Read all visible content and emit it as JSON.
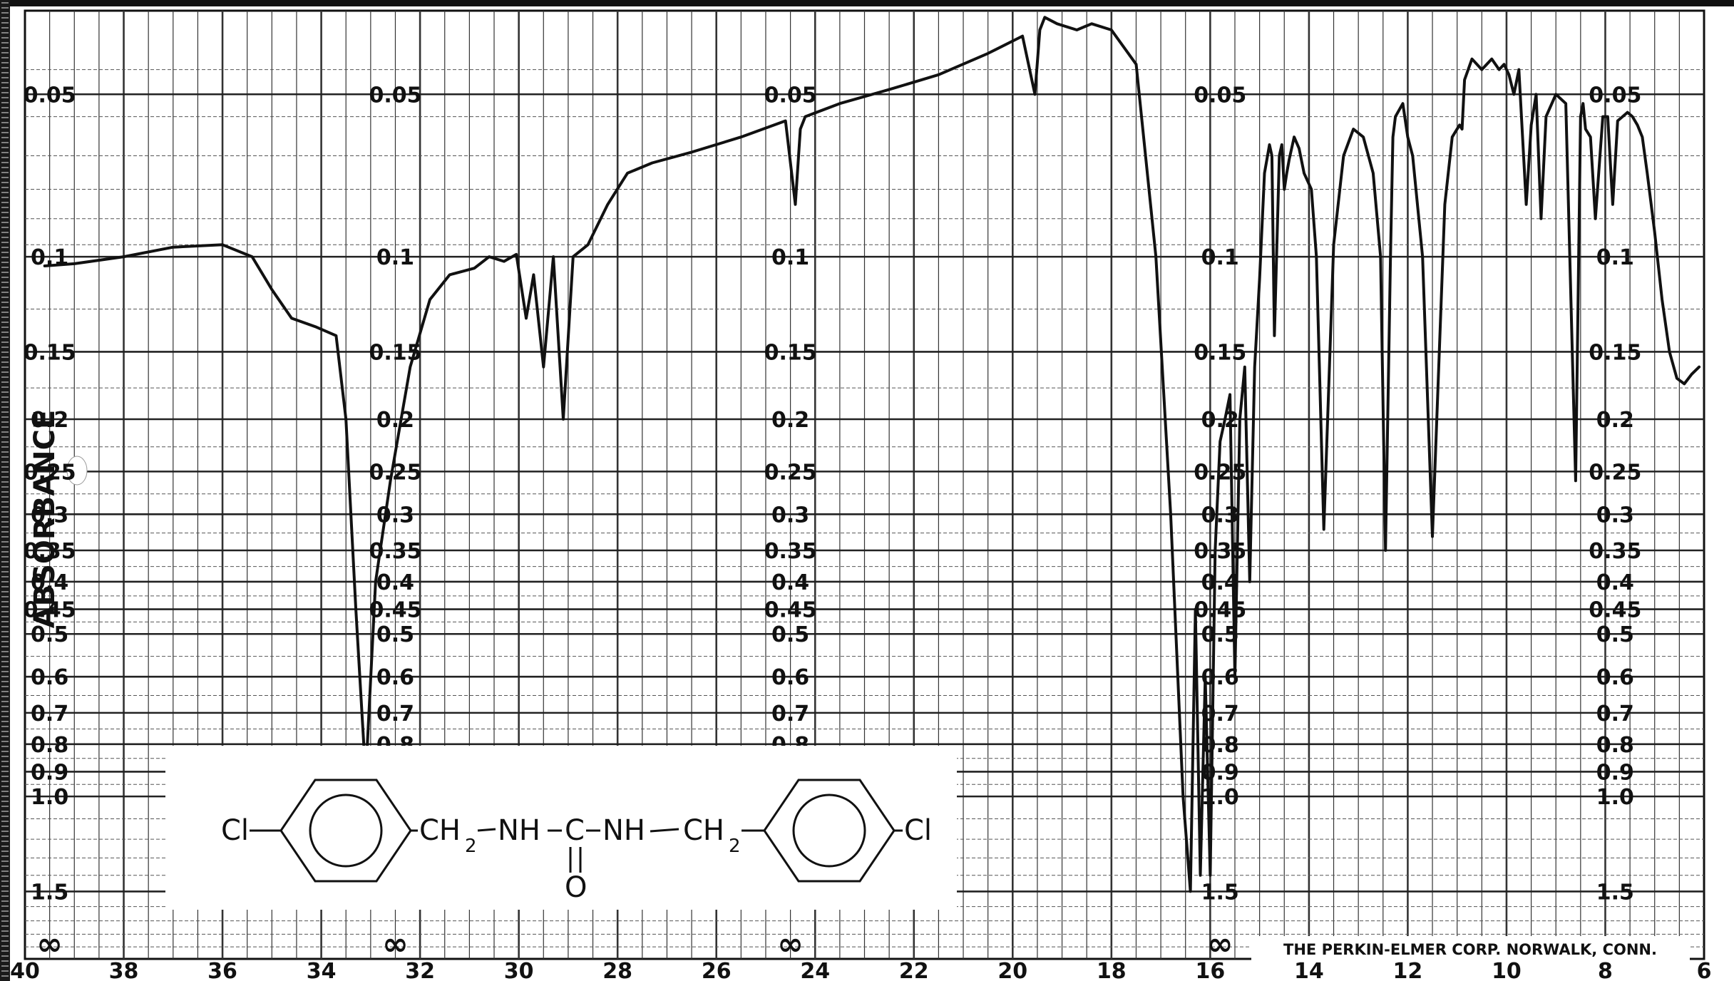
{
  "chart_data": {
    "type": "line",
    "title": "",
    "ylabel": "ABSORBANCE",
    "xlabel": "",
    "x_tick_labels": [
      "40",
      "38",
      "36",
      "34",
      "32",
      "30",
      "28",
      "26",
      "24",
      "22",
      "20",
      "18",
      "16",
      "14",
      "12",
      "10",
      "8",
      "6"
    ],
    "xlim": [
      40,
      6
    ],
    "y_scale": "log-absorbance",
    "ylim": [
      0.035,
      2.0
    ],
    "absorbance_tick_labels": [
      "0.05",
      "0.1",
      "0.15",
      "0.2",
      "0.25",
      "0.3",
      "0.35",
      "0.4",
      "0.45",
      "0.5",
      "0.6",
      "0.7",
      "0.8",
      "0.9",
      "1.0",
      "1.5",
      "∞"
    ],
    "absorbance_tick_values": [
      0.05,
      0.1,
      0.15,
      0.2,
      0.25,
      0.3,
      0.35,
      0.4,
      0.45,
      0.5,
      0.6,
      0.7,
      0.8,
      0.9,
      1.0,
      1.5,
      1.9
    ],
    "scale_columns_at_x": [
      39.5,
      32.5,
      24.5,
      15.8,
      7.8
    ],
    "grid": true,
    "series": [
      {
        "x": [
          39.6,
          39.0,
          38.0,
          37.0,
          36.0,
          35.4,
          35.0,
          34.6,
          34.1,
          33.7,
          33.5,
          33.3,
          33.1,
          32.9,
          32.6,
          32.2,
          31.8,
          31.4,
          30.9,
          30.6,
          30.3,
          30.05,
          29.85,
          29.7,
          29.5,
          29.3,
          29.1,
          28.9,
          28.6,
          28.2,
          27.8,
          27.3,
          26.5,
          25.5,
          24.6,
          24.4,
          24.3,
          24.2,
          23.5,
          22.5,
          21.5,
          20.5,
          19.8,
          19.55,
          19.45,
          19.35,
          19.1,
          18.7,
          18.4,
          18.0,
          17.5,
          17.1,
          16.8,
          16.55,
          16.4,
          16.3,
          16.2,
          16.1,
          16.0,
          15.9,
          15.8,
          15.7,
          15.6,
          15.5,
          15.4,
          15.3,
          15.2,
          15.1,
          15.0,
          14.9,
          14.8,
          14.75,
          14.7,
          14.6,
          14.55,
          14.5,
          14.45,
          14.4,
          14.3,
          14.2,
          14.1,
          13.95,
          13.85,
          13.7,
          13.5,
          13.3,
          13.1,
          12.9,
          12.7,
          12.55,
          12.45,
          12.35,
          12.3,
          12.25,
          12.1,
          12.0,
          11.9,
          11.7,
          11.5,
          11.25,
          11.1,
          10.95,
          10.9,
          10.85,
          10.7,
          10.5,
          10.3,
          10.15,
          10.05,
          9.95,
          9.85,
          9.75,
          9.6,
          9.5,
          9.4,
          9.3,
          9.2,
          9.0,
          8.8,
          8.6,
          8.5,
          8.45,
          8.4,
          8.3,
          8.2,
          8.05,
          7.95,
          7.85,
          7.75,
          7.65,
          7.55,
          7.45,
          7.35,
          7.25,
          7.15,
          7.0,
          6.85,
          6.7,
          6.55,
          6.4,
          6.25,
          6.1
        ],
        "y": [
          0.104,
          0.103,
          0.1,
          0.096,
          0.095,
          0.1,
          0.115,
          0.13,
          0.135,
          0.14,
          0.2,
          0.45,
          0.92,
          0.4,
          0.26,
          0.16,
          0.12,
          0.108,
          0.105,
          0.1,
          0.102,
          0.099,
          0.13,
          0.108,
          0.16,
          0.1,
          0.2,
          0.1,
          0.095,
          0.08,
          0.07,
          0.067,
          0.064,
          0.06,
          0.056,
          0.08,
          0.058,
          0.055,
          0.052,
          0.049,
          0.046,
          0.042,
          0.039,
          0.05,
          0.038,
          0.036,
          0.037,
          0.038,
          0.037,
          0.038,
          0.044,
          0.1,
          0.3,
          1.0,
          1.5,
          0.45,
          1.4,
          0.6,
          1.4,
          0.35,
          0.22,
          0.2,
          0.18,
          0.6,
          0.2,
          0.16,
          0.4,
          0.16,
          0.11,
          0.07,
          0.062,
          0.065,
          0.14,
          0.065,
          0.062,
          0.075,
          0.07,
          0.066,
          0.06,
          0.063,
          0.07,
          0.075,
          0.1,
          0.32,
          0.095,
          0.065,
          0.058,
          0.06,
          0.07,
          0.1,
          0.35,
          0.1,
          0.06,
          0.055,
          0.052,
          0.06,
          0.065,
          0.1,
          0.33,
          0.08,
          0.06,
          0.057,
          0.058,
          0.047,
          0.043,
          0.045,
          0.043,
          0.045,
          0.044,
          0.046,
          0.05,
          0.045,
          0.08,
          0.057,
          0.05,
          0.085,
          0.055,
          0.05,
          0.052,
          0.26,
          0.055,
          0.052,
          0.058,
          0.06,
          0.085,
          0.055,
          0.055,
          0.08,
          0.056,
          0.055,
          0.054,
          0.055,
          0.057,
          0.06,
          0.07,
          0.09,
          0.12,
          0.15,
          0.168,
          0.172,
          0.165,
          0.16
        ]
      }
    ],
    "annotations": [
      "THE PERKIN-ELMER CORP. NORWALK, CONN."
    ],
    "structure": {
      "left_cl": "Cl",
      "ch2_left": "CH",
      "sub_left": "2",
      "nh_left": "NH",
      "carbon": "C",
      "nh_right": "NH",
      "ch2_right": "CH",
      "sub_right": "2",
      "right_cl": "Cl",
      "oxygen": "O"
    }
  }
}
